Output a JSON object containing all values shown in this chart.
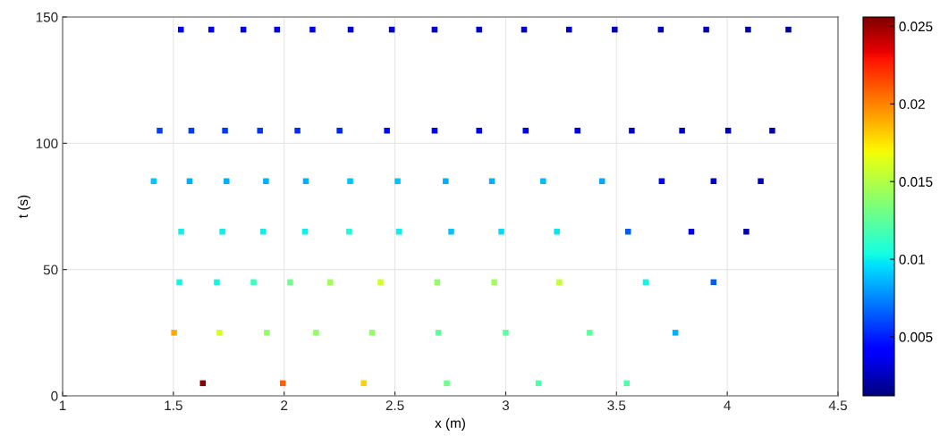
{
  "chart_data": {
    "type": "scatter",
    "xlabel": "x (m)",
    "ylabel": "t (s)",
    "xlim": [
      1,
      4.5
    ],
    "xticks": [
      1,
      1.5,
      2,
      2.5,
      3,
      3.5,
      4,
      4.5
    ],
    "ylim": [
      0,
      150
    ],
    "yticks": [
      0,
      50,
      100,
      150
    ],
    "clim": [
      0.0012,
      0.0256
    ],
    "cticks": [
      0.005,
      0.01,
      0.015,
      0.02,
      0.025
    ],
    "grid": true,
    "marker": "square",
    "series": [
      {
        "x": [
          1.534,
          1.671,
          1.816,
          1.968,
          2.128,
          2.3,
          2.486,
          2.679,
          2.88,
          3.083,
          3.286,
          3.492,
          3.7,
          3.905,
          4.094,
          4.276,
          1.438,
          1.581,
          1.733,
          1.891,
          2.06,
          2.25,
          2.464,
          2.679,
          2.88,
          3.09,
          3.324,
          3.569,
          3.796,
          4.004,
          4.203,
          1.411,
          1.573,
          1.74,
          1.918,
          2.098,
          2.298,
          2.512,
          2.729,
          2.938,
          3.169,
          3.435,
          3.704,
          3.938,
          4.151,
          1.535,
          1.721,
          1.905,
          2.094,
          2.293,
          2.518,
          2.754,
          2.98,
          3.231,
          3.552,
          3.838,
          4.086,
          1.527,
          1.696,
          1.862,
          2.027,
          2.208,
          2.435,
          2.691,
          2.948,
          3.242,
          3.632,
          3.938,
          1.503,
          1.708,
          1.922,
          2.144,
          2.397,
          2.696,
          3.0,
          3.379,
          3.766,
          1.633,
          1.994,
          2.359,
          2.734,
          3.148,
          3.546
        ],
        "values": [
          145,
          145,
          145,
          145,
          145,
          145,
          145,
          145,
          145,
          145,
          145,
          145,
          145,
          145,
          145,
          145,
          105,
          105,
          105,
          105,
          105,
          105,
          105,
          105,
          105,
          105,
          105,
          105,
          105,
          105,
          105,
          85,
          85,
          85,
          85,
          85,
          85,
          85,
          85,
          85,
          85,
          85,
          85,
          85,
          85,
          65,
          65,
          65,
          65,
          65,
          65,
          65,
          65,
          65,
          65,
          65,
          65,
          45,
          45,
          45,
          45,
          45,
          45,
          45,
          45,
          45,
          45,
          45,
          25,
          25,
          25,
          25,
          25,
          25,
          25,
          25,
          25,
          5,
          5,
          5,
          5,
          5,
          5
        ],
        "cvalues": [
          0.0038,
          0.0036,
          0.0035,
          0.0034,
          0.0033,
          0.0032,
          0.003,
          0.003,
          0.0029,
          0.0028,
          0.0027,
          0.0025,
          0.0024,
          0.0022,
          0.002,
          0.0018,
          0.0058,
          0.0057,
          0.0056,
          0.0055,
          0.0053,
          0.0052,
          0.0045,
          0.0042,
          0.004,
          0.0037,
          0.0035,
          0.003,
          0.0028,
          0.0025,
          0.0022,
          0.009,
          0.0085,
          0.0085,
          0.0085,
          0.0085,
          0.009,
          0.009,
          0.0085,
          0.0085,
          0.0088,
          0.0083,
          0.0038,
          0.003,
          0.0025,
          0.01,
          0.01,
          0.01,
          0.01,
          0.0105,
          0.01,
          0.009,
          0.0095,
          0.0098,
          0.0065,
          0.0035,
          0.0025,
          0.0102,
          0.0102,
          0.0115,
          0.013,
          0.0145,
          0.0158,
          0.014,
          0.0145,
          0.0155,
          0.0102,
          0.0065,
          0.019,
          0.016,
          0.014,
          0.014,
          0.014,
          0.0125,
          0.0125,
          0.0125,
          0.0085,
          0.0255,
          0.021,
          0.018,
          0.013,
          0.012,
          0.012
        ]
      }
    ]
  }
}
